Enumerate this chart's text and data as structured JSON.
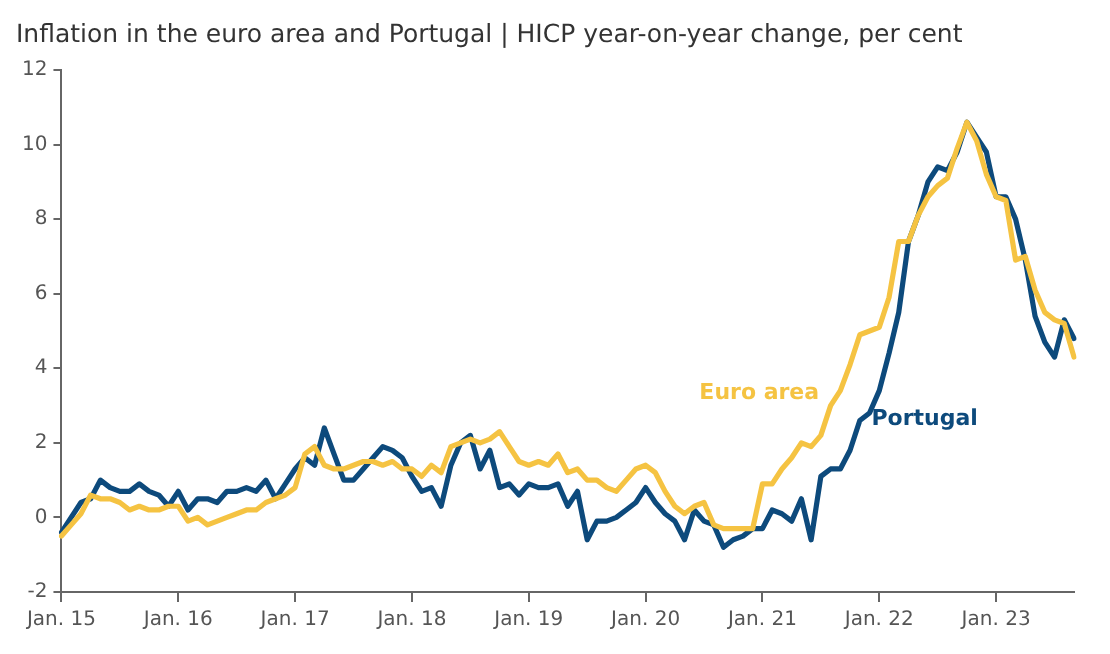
{
  "chart_data": {
    "type": "line",
    "title": "Inflation in the euro area and Portugal | HICP year-on-year change, per cent",
    "categories": [
      "Jan. 15",
      null,
      null,
      null,
      null,
      null,
      null,
      null,
      null,
      null,
      null,
      null,
      "Jan. 16",
      null,
      null,
      null,
      null,
      null,
      null,
      null,
      null,
      null,
      null,
      null,
      "Jan. 17",
      null,
      null,
      null,
      null,
      null,
      null,
      null,
      null,
      null,
      null,
      null,
      "Jan. 18",
      null,
      null,
      null,
      null,
      null,
      null,
      null,
      null,
      null,
      null,
      null,
      "Jan. 19",
      null,
      null,
      null,
      null,
      null,
      null,
      null,
      null,
      null,
      null,
      null,
      "Jan. 20",
      null,
      null,
      null,
      null,
      null,
      null,
      null,
      null,
      null,
      null,
      null,
      "Jan. 21",
      null,
      null,
      null,
      null,
      null,
      null,
      null,
      null,
      null,
      null,
      null,
      "Jan. 22",
      null,
      null,
      null,
      null,
      null,
      null,
      null,
      null,
      null,
      null,
      null,
      "Jan. 23",
      null,
      null,
      null,
      null,
      null,
      null,
      null,
      null
    ],
    "series": [
      {
        "name": "Euro area",
        "color": "#f5c342",
        "values": [
          -0.5,
          -0.2,
          0.1,
          0.6,
          0.5,
          0.5,
          0.4,
          0.2,
          0.3,
          0.2,
          0.2,
          0.3,
          0.3,
          -0.1,
          0.0,
          -0.2,
          -0.1,
          0.0,
          0.1,
          0.2,
          0.2,
          0.4,
          0.5,
          0.6,
          0.8,
          1.7,
          1.9,
          1.4,
          1.3,
          1.3,
          1.4,
          1.5,
          1.5,
          1.4,
          1.5,
          1.3,
          1.3,
          1.1,
          1.4,
          1.2,
          1.9,
          2.0,
          2.1,
          2.0,
          2.1,
          2.3,
          1.9,
          1.5,
          1.4,
          1.5,
          1.4,
          1.7,
          1.2,
          1.3,
          1.0,
          1.0,
          0.8,
          0.7,
          1.0,
          1.3,
          1.4,
          1.2,
          0.7,
          0.3,
          0.1,
          0.3,
          0.4,
          -0.2,
          -0.3,
          -0.3,
          -0.3,
          -0.3,
          0.9,
          0.9,
          1.3,
          1.6,
          2.0,
          1.9,
          2.2,
          3.0,
          3.4,
          4.1,
          4.9,
          5.0,
          5.1,
          5.9,
          7.4,
          7.4,
          8.1,
          8.6,
          8.9,
          9.1,
          9.9,
          10.6,
          10.1,
          9.2,
          8.6,
          8.5,
          6.9,
          7.0,
          6.1,
          5.5,
          5.3,
          5.2,
          4.3
        ]
      },
      {
        "name": "Portugal",
        "color": "#0d4a7c",
        "values": [
          -0.4,
          0.0,
          0.4,
          0.5,
          1.0,
          0.8,
          0.7,
          0.7,
          0.9,
          0.7,
          0.6,
          0.3,
          0.7,
          0.2,
          0.5,
          0.5,
          0.4,
          0.7,
          0.7,
          0.8,
          0.7,
          1.0,
          0.5,
          0.9,
          1.3,
          1.6,
          1.4,
          2.4,
          1.7,
          1.0,
          1.0,
          1.3,
          1.6,
          1.9,
          1.8,
          1.6,
          1.1,
          0.7,
          0.8,
          0.3,
          1.4,
          2.0,
          2.2,
          1.3,
          1.8,
          0.8,
          0.9,
          0.6,
          0.9,
          0.8,
          0.8,
          0.9,
          0.3,
          0.7,
          -0.6,
          -0.1,
          -0.1,
          0.0,
          0.2,
          0.4,
          0.8,
          0.4,
          0.1,
          -0.1,
          -0.6,
          0.2,
          -0.1,
          -0.2,
          -0.8,
          -0.6,
          -0.5,
          -0.3,
          -0.3,
          0.2,
          0.1,
          -0.1,
          0.5,
          -0.6,
          1.1,
          1.3,
          1.3,
          1.8,
          2.6,
          2.8,
          3.4,
          4.4,
          5.5,
          7.4,
          8.1,
          9.0,
          9.4,
          9.3,
          9.8,
          10.6,
          10.2,
          9.8,
          8.6,
          8.6,
          8.0,
          6.9,
          5.4,
          4.7,
          4.3,
          5.3,
          4.8
        ]
      }
    ],
    "ylim": [
      -2,
      12
    ],
    "yticks": [
      -2,
      0,
      2,
      4,
      6,
      8,
      10,
      12
    ],
    "grid": false,
    "legend": false,
    "marker": "none",
    "line_style": "solid"
  }
}
